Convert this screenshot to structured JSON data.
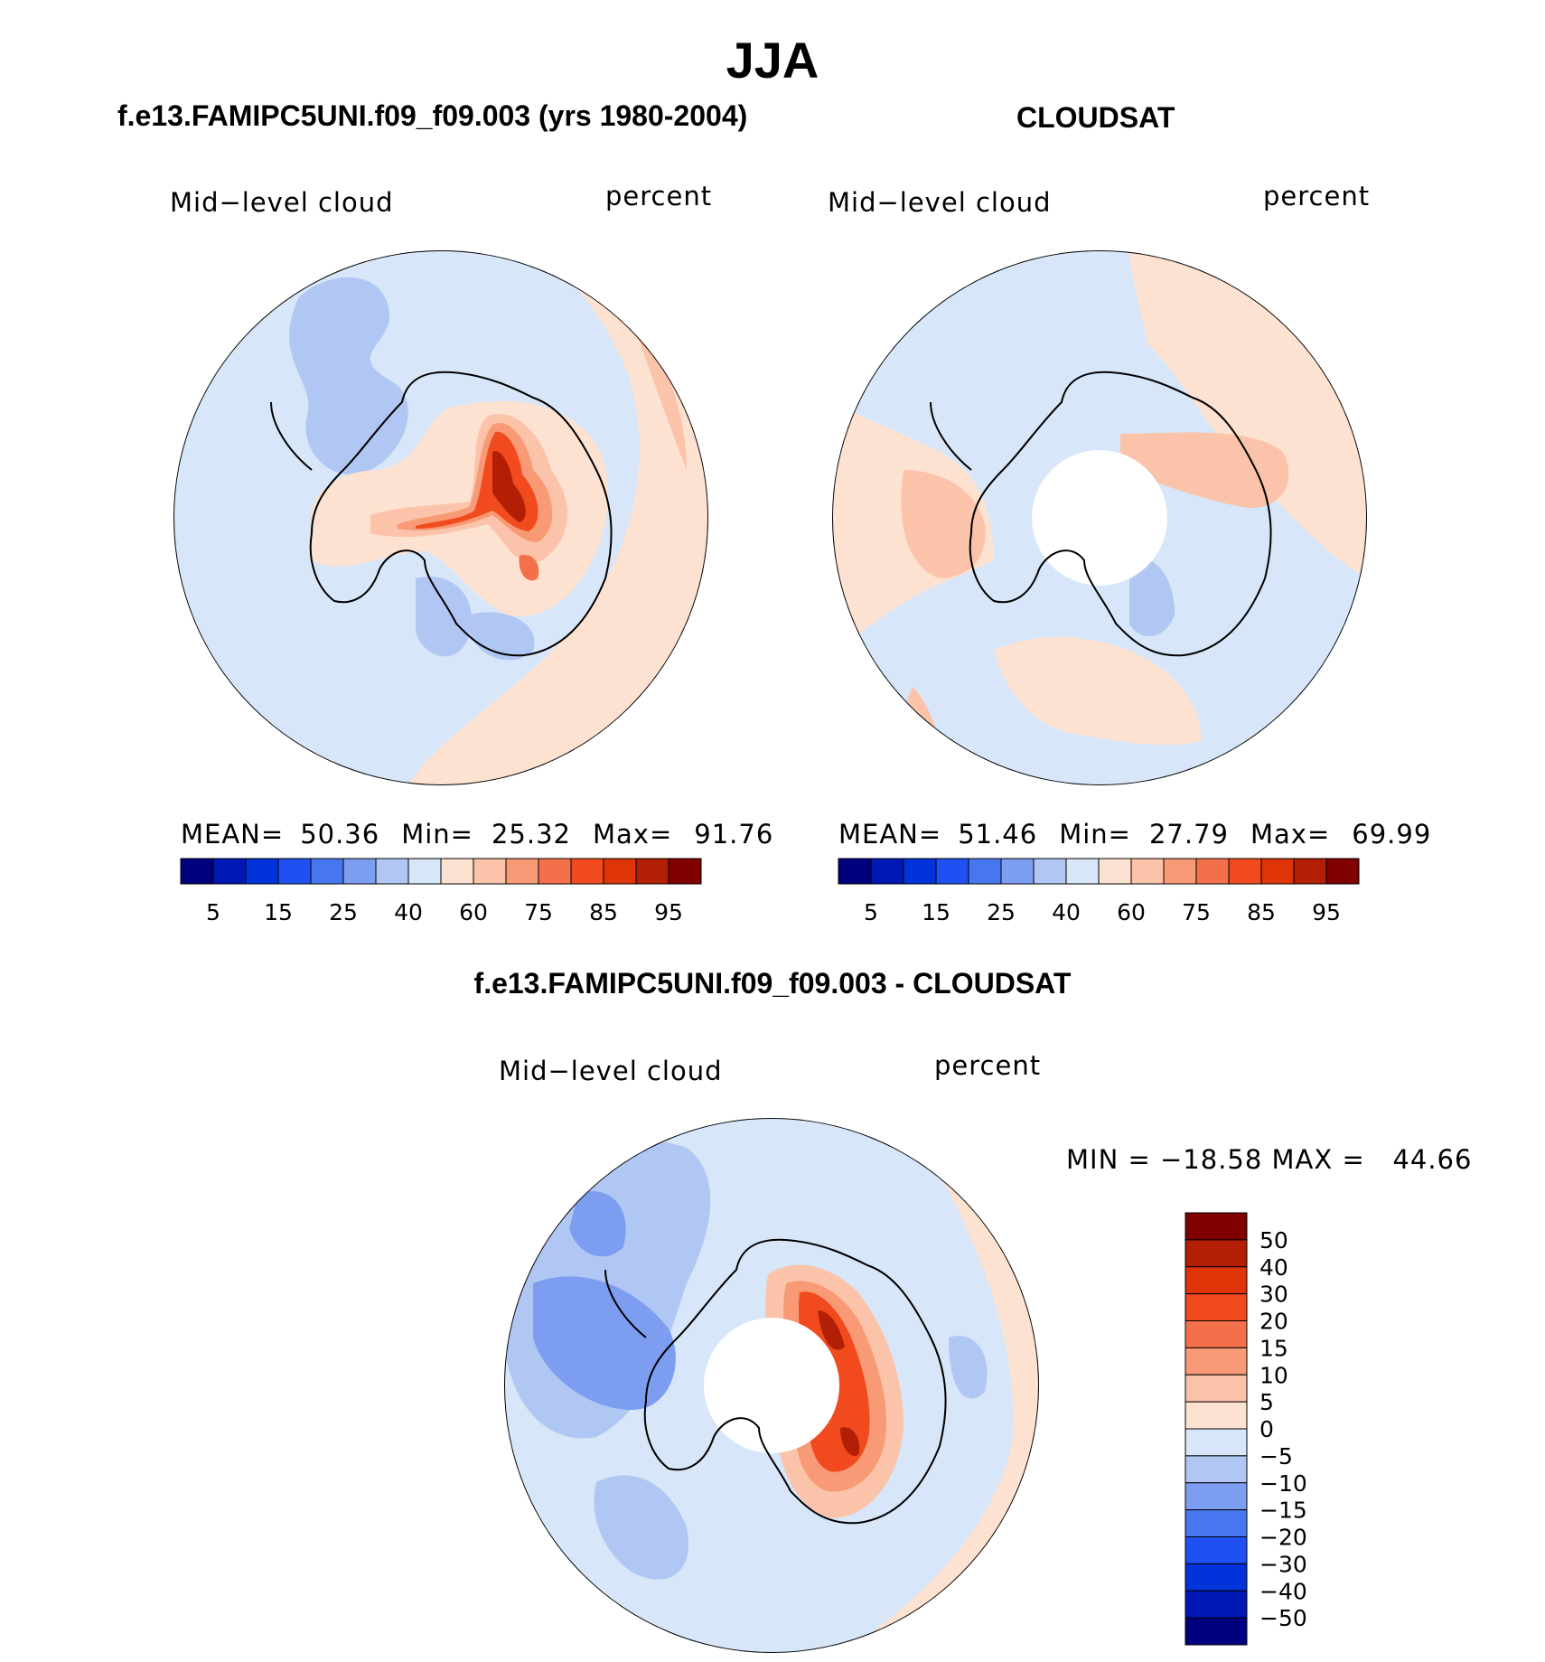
{
  "title": "JJA",
  "panels": [
    {
      "heading": "f.e13.FAMIPC5UNI.f09_f09.003 (yrs 1980-2004)",
      "left_label": "Mid−level cloud",
      "right_label": "percent",
      "stats": {
        "mean_label": "MEAN=",
        "mean": "50.36",
        "min_label": "Min=",
        "min": "25.32",
        "max_label": "Max=",
        "max": "91.76"
      }
    },
    {
      "heading": "CLOUDSAT",
      "left_label": "Mid−level cloud",
      "right_label": "percent",
      "stats": {
        "mean_label": "MEAN=",
        "mean": "51.46",
        "min_label": "Min=",
        "min": "27.79",
        "max_label": "Max=",
        "max": "69.99"
      }
    },
    {
      "heading": "f.e13.FAMIPC5UNI.f09_f09.003 - CLOUDSAT",
      "left_label": "Mid−level cloud",
      "right_label": "percent",
      "minmax_text": "MIN = −18.58 MAX =   44.66"
    }
  ],
  "colors": {
    "abs_scale": [
      "#00007f",
      "#0018b3",
      "#0033d9",
      "#1f51f2",
      "#4777ee",
      "#7d9ef0",
      "#b1c7f3",
      "#d7e6f8",
      "#fde2d1",
      "#fbc3a9",
      "#f79a75",
      "#f4704a",
      "#f14a1e",
      "#df3308",
      "#b21f04",
      "#800000"
    ],
    "diff_scale": [
      "#00007f",
      "#0018b3",
      "#0033d9",
      "#1f51f2",
      "#4777ee",
      "#7d9ef0",
      "#b1c7f3",
      "#d7e6f8",
      "#fde2d1",
      "#fbc3a9",
      "#f79a75",
      "#f4704a",
      "#f14a1e",
      "#df3308",
      "#b21f04",
      "#800000"
    ],
    "coast": "#000000"
  },
  "chart_data": [
    {
      "type": "heatmap",
      "projection": "south-polar stereographic",
      "title": "f.e13.FAMIPC5UNI.f09_f09.003 (yrs 1980-2004)",
      "variable": "Mid-level cloud",
      "units": "percent",
      "levels": [
        5,
        10,
        15,
        20,
        25,
        30,
        40,
        50,
        60,
        70,
        75,
        80,
        85,
        90,
        95
      ],
      "colorbar_tick_labels": [
        "5",
        "15",
        "25",
        "40",
        "60",
        "75",
        "85",
        "95"
      ],
      "mean": 50.36,
      "min": 25.32,
      "max": 91.76
    },
    {
      "type": "heatmap",
      "projection": "south-polar stereographic",
      "title": "CLOUDSAT",
      "variable": "Mid-level cloud",
      "units": "percent",
      "levels": [
        5,
        10,
        15,
        20,
        25,
        30,
        40,
        50,
        60,
        70,
        75,
        80,
        85,
        90,
        95
      ],
      "colorbar_tick_labels": [
        "5",
        "15",
        "25",
        "40",
        "60",
        "75",
        "85",
        "95"
      ],
      "mean": 51.46,
      "min": 27.79,
      "max": 69.99
    },
    {
      "type": "heatmap",
      "projection": "south-polar stereographic",
      "title": "f.e13.FAMIPC5UNI.f09_f09.003 - CLOUDSAT",
      "variable": "Mid-level cloud",
      "units": "percent",
      "levels": [
        -50,
        -40,
        -30,
        -20,
        -15,
        -10,
        -5,
        0,
        5,
        10,
        15,
        20,
        30,
        40,
        50
      ],
      "colorbar_tick_labels": [
        "50",
        "40",
        "30",
        "20",
        "15",
        "10",
        "5",
        "0",
        "−5",
        "−10",
        "−15",
        "−20",
        "−30",
        "−40",
        "−50"
      ],
      "min": -18.58,
      "max": 44.66
    }
  ]
}
